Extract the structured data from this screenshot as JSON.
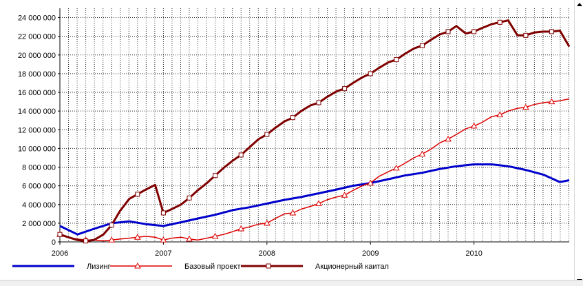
{
  "chart_data": {
    "type": "line",
    "title": "",
    "xlabel": "",
    "ylabel": "",
    "x_ticks": [
      "2006",
      "2007",
      "2008",
      "2009",
      "2010"
    ],
    "x_range": [
      2006.0,
      2010.92
    ],
    "ylim": [
      0,
      25000000
    ],
    "y_ticks": [
      {
        "value": 0,
        "label": "0"
      },
      {
        "value": 2000000,
        "label": "2 000 000"
      },
      {
        "value": 4000000,
        "label": "4 000 000"
      },
      {
        "value": 6000000,
        "label": "6 000 000"
      },
      {
        "value": 8000000,
        "label": "8 000 000"
      },
      {
        "value": 10000000,
        "label": "10 000 000"
      },
      {
        "value": 12000000,
        "label": "12 000 000"
      },
      {
        "value": 14000000,
        "label": "14 000 000"
      },
      {
        "value": 16000000,
        "label": "16 000 000"
      },
      {
        "value": 18000000,
        "label": "18 000 000"
      },
      {
        "value": 20000000,
        "label": "20 000 000"
      },
      {
        "value": 22000000,
        "label": "22 000 000"
      },
      {
        "value": 24000000,
        "label": "24 000 000"
      }
    ],
    "grid": true,
    "legend_position": "bottom",
    "series": [
      {
        "name": "Лизинг",
        "color": "#0000cc",
        "marker": "none",
        "points": [
          [
            2006.0,
            1700000
          ],
          [
            2006.17,
            800000
          ],
          [
            2006.33,
            1400000
          ],
          [
            2006.5,
            2000000
          ],
          [
            2006.67,
            2200000
          ],
          [
            2006.83,
            1900000
          ],
          [
            2007.0,
            1700000
          ],
          [
            2007.17,
            2100000
          ],
          [
            2007.33,
            2500000
          ],
          [
            2007.5,
            2900000
          ],
          [
            2007.67,
            3400000
          ],
          [
            2007.83,
            3700000
          ],
          [
            2008.0,
            4100000
          ],
          [
            2008.17,
            4500000
          ],
          [
            2008.33,
            4800000
          ],
          [
            2008.5,
            5200000
          ],
          [
            2008.67,
            5600000
          ],
          [
            2008.83,
            6000000
          ],
          [
            2009.0,
            6300000
          ],
          [
            2009.17,
            6700000
          ],
          [
            2009.33,
            7100000
          ],
          [
            2009.5,
            7400000
          ],
          [
            2009.67,
            7800000
          ],
          [
            2009.83,
            8100000
          ],
          [
            2010.0,
            8300000
          ],
          [
            2010.17,
            8300000
          ],
          [
            2010.33,
            8100000
          ],
          [
            2010.5,
            7700000
          ],
          [
            2010.67,
            7200000
          ],
          [
            2010.83,
            6400000
          ],
          [
            2010.92,
            6600000
          ]
        ]
      },
      {
        "name": "Базовый проект",
        "color": "#dd0000",
        "marker": "triangle",
        "points": [
          [
            2006.0,
            800000
          ],
          [
            2006.08,
            500000
          ],
          [
            2006.17,
            300000
          ],
          [
            2006.25,
            200000
          ],
          [
            2006.33,
            200000
          ],
          [
            2006.42,
            100000
          ],
          [
            2006.5,
            200000
          ],
          [
            2006.58,
            300000
          ],
          [
            2006.67,
            400000
          ],
          [
            2006.75,
            500000
          ],
          [
            2006.83,
            600000
          ],
          [
            2006.92,
            500000
          ],
          [
            2007.0,
            200000
          ],
          [
            2007.08,
            400000
          ],
          [
            2007.17,
            500000
          ],
          [
            2007.25,
            300000
          ],
          [
            2007.33,
            200000
          ],
          [
            2007.42,
            400000
          ],
          [
            2007.5,
            600000
          ],
          [
            2007.58,
            800000
          ],
          [
            2007.67,
            1100000
          ],
          [
            2007.75,
            1400000
          ],
          [
            2007.83,
            1600000
          ],
          [
            2007.92,
            1900000
          ],
          [
            2008.0,
            2000000
          ],
          [
            2008.08,
            2500000
          ],
          [
            2008.17,
            3000000
          ],
          [
            2008.25,
            3100000
          ],
          [
            2008.33,
            3500000
          ],
          [
            2008.42,
            3800000
          ],
          [
            2008.5,
            4100000
          ],
          [
            2008.58,
            4500000
          ],
          [
            2008.67,
            4800000
          ],
          [
            2008.75,
            5000000
          ],
          [
            2008.83,
            5500000
          ],
          [
            2008.92,
            6000000
          ],
          [
            2009.0,
            6300000
          ],
          [
            2009.08,
            7000000
          ],
          [
            2009.17,
            7500000
          ],
          [
            2009.25,
            7900000
          ],
          [
            2009.33,
            8400000
          ],
          [
            2009.42,
            9000000
          ],
          [
            2009.5,
            9400000
          ],
          [
            2009.58,
            9900000
          ],
          [
            2009.67,
            10600000
          ],
          [
            2009.75,
            11000000
          ],
          [
            2009.83,
            11500000
          ],
          [
            2009.92,
            12100000
          ],
          [
            2010.0,
            12400000
          ],
          [
            2010.08,
            12800000
          ],
          [
            2010.17,
            13400000
          ],
          [
            2010.25,
            13600000
          ],
          [
            2010.33,
            14000000
          ],
          [
            2010.42,
            14300000
          ],
          [
            2010.5,
            14400000
          ],
          [
            2010.58,
            14700000
          ],
          [
            2010.67,
            14900000
          ],
          [
            2010.75,
            15000000
          ],
          [
            2010.83,
            15100000
          ],
          [
            2010.92,
            15300000
          ]
        ]
      },
      {
        "name": "Акционерный каитал",
        "color": "#800000",
        "marker": "square",
        "points": [
          [
            2006.0,
            800000
          ],
          [
            2006.08,
            500000
          ],
          [
            2006.17,
            200000
          ],
          [
            2006.25,
            100000
          ],
          [
            2006.33,
            200000
          ],
          [
            2006.42,
            800000
          ],
          [
            2006.5,
            1800000
          ],
          [
            2006.58,
            3300000
          ],
          [
            2006.67,
            4600000
          ],
          [
            2006.75,
            5100000
          ],
          [
            2006.83,
            5600000
          ],
          [
            2006.92,
            6100000
          ],
          [
            2007.0,
            3100000
          ],
          [
            2007.08,
            3500000
          ],
          [
            2007.17,
            4000000
          ],
          [
            2007.25,
            4700000
          ],
          [
            2007.33,
            5500000
          ],
          [
            2007.42,
            6300000
          ],
          [
            2007.5,
            7100000
          ],
          [
            2007.58,
            7900000
          ],
          [
            2007.67,
            8700000
          ],
          [
            2007.75,
            9300000
          ],
          [
            2007.83,
            10100000
          ],
          [
            2007.92,
            11000000
          ],
          [
            2008.0,
            11500000
          ],
          [
            2008.08,
            12200000
          ],
          [
            2008.17,
            12900000
          ],
          [
            2008.25,
            13300000
          ],
          [
            2008.33,
            14000000
          ],
          [
            2008.42,
            14600000
          ],
          [
            2008.5,
            14900000
          ],
          [
            2008.58,
            15500000
          ],
          [
            2008.67,
            16100000
          ],
          [
            2008.75,
            16400000
          ],
          [
            2008.83,
            17000000
          ],
          [
            2008.92,
            17600000
          ],
          [
            2009.0,
            18000000
          ],
          [
            2009.08,
            18600000
          ],
          [
            2009.17,
            19200000
          ],
          [
            2009.25,
            19500000
          ],
          [
            2009.33,
            20100000
          ],
          [
            2009.42,
            20700000
          ],
          [
            2009.5,
            21000000
          ],
          [
            2009.58,
            21600000
          ],
          [
            2009.67,
            22200000
          ],
          [
            2009.75,
            22500000
          ],
          [
            2009.83,
            23100000
          ],
          [
            2009.92,
            22300000
          ],
          [
            2010.0,
            22500000
          ],
          [
            2010.08,
            22900000
          ],
          [
            2010.17,
            23300000
          ],
          [
            2010.25,
            23500000
          ],
          [
            2010.33,
            23700000
          ],
          [
            2010.42,
            22100000
          ],
          [
            2010.5,
            22100000
          ],
          [
            2010.58,
            22400000
          ],
          [
            2010.67,
            22500000
          ],
          [
            2010.75,
            22500000
          ],
          [
            2010.83,
            22600000
          ],
          [
            2010.92,
            20900000
          ]
        ]
      }
    ]
  }
}
